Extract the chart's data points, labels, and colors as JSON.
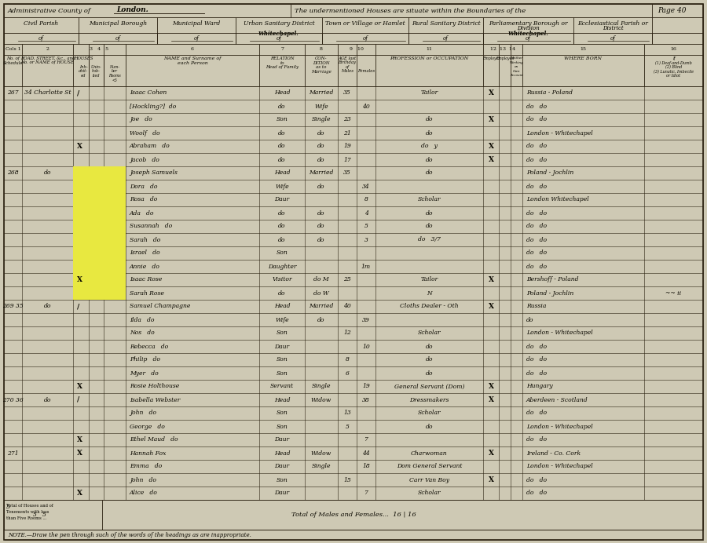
{
  "page_title_left": "Administrative County of ___________ London.",
  "page_title_mid": "The undermentioned Houses are situate within the Boundaries of the",
  "page_num": "Page 40",
  "urban_sanitary_value": "Whitechapel.",
  "parliamentary_value": "Whitechapel.",
  "rows": [
    {
      "sched": "267",
      "address": "34 Charlotte St",
      "mark": "/",
      "name": "Isaac Cohen",
      "relation": "Head",
      "condition": "Married",
      "age_m": "35",
      "age_f": "",
      "occupation": "Tailor",
      "emp": "X",
      "born": "Russia - Poland",
      "infirmity": ""
    },
    {
      "sched": "",
      "address": "",
      "mark": "",
      "name": "[Hockling?]  do",
      "relation": "do",
      "condition": "Wife",
      "age_m": "",
      "age_f": "40",
      "occupation": "",
      "emp": "",
      "born": "do   do",
      "infirmity": ""
    },
    {
      "sched": "",
      "address": "",
      "mark": "",
      "name": "Joe   do",
      "relation": "Son",
      "condition": "Single",
      "age_m": "23",
      "age_f": "",
      "occupation": "do",
      "emp": "X",
      "born": "do   do",
      "infirmity": ""
    },
    {
      "sched": "",
      "address": "",
      "mark": "",
      "name": "Woolf   do",
      "relation": "do",
      "condition": "do",
      "age_m": "21",
      "age_f": "",
      "occupation": "do",
      "emp": "",
      "born": "London - Whitechapel",
      "infirmity": ""
    },
    {
      "sched": "",
      "address": "",
      "mark": "X",
      "name": "Abraham   do",
      "relation": "do",
      "condition": "do",
      "age_m": "19",
      "age_f": "",
      "occupation": "do   y",
      "emp": "X",
      "born": "do   do",
      "infirmity": ""
    },
    {
      "sched": "",
      "address": "",
      "mark": "",
      "name": "Jacob   do",
      "relation": "do",
      "condition": "do",
      "age_m": "17",
      "age_f": "",
      "occupation": "do",
      "emp": "X",
      "born": "do   do",
      "infirmity": ""
    },
    {
      "sched": "268",
      "address": "do",
      "mark": "",
      "name": "Joseph Samuels",
      "relation": "Head",
      "condition": "Married",
      "age_m": "35",
      "age_f": "",
      "occupation": "do",
      "emp": "",
      "born": "Poland - Jochlin",
      "infirmity": "",
      "highlight": true
    },
    {
      "sched": "",
      "address": "",
      "mark": "",
      "name": "Dora   do",
      "relation": "Wife",
      "condition": "do",
      "age_m": "",
      "age_f": "34",
      "occupation": "",
      "emp": "",
      "born": "do   do",
      "infirmity": "",
      "highlight": true
    },
    {
      "sched": "",
      "address": "",
      "mark": "",
      "name": "Rosa   do",
      "relation": "Daur",
      "condition": "",
      "age_m": "",
      "age_f": "8",
      "occupation": "Scholar",
      "emp": "",
      "born": "London Whitechapel",
      "infirmity": "",
      "highlight": true
    },
    {
      "sched": "",
      "address": "",
      "mark": "",
      "name": "Ada   do",
      "relation": "do",
      "condition": "do",
      "age_m": "",
      "age_f": "4",
      "occupation": "do",
      "emp": "",
      "born": "do   do",
      "infirmity": "",
      "highlight": true
    },
    {
      "sched": "",
      "address": "",
      "mark": "",
      "name": "Susannah   do",
      "relation": "do",
      "condition": "do",
      "age_m": "",
      "age_f": "5",
      "occupation": "do",
      "emp": "",
      "born": "do   do",
      "infirmity": "",
      "highlight": true
    },
    {
      "sched": "",
      "address": "",
      "mark": "",
      "name": "Sarah   do",
      "relation": "do",
      "condition": "do",
      "age_m": "",
      "age_f": "3",
      "occupation": "do   3/7",
      "emp": "",
      "born": "do   do",
      "infirmity": "",
      "highlight": true
    },
    {
      "sched": "",
      "address": "",
      "mark": "",
      "name": "Israel   do",
      "relation": "Son",
      "condition": "",
      "age_m": "",
      "age_f": "",
      "occupation": "",
      "emp": "",
      "born": "do   do",
      "infirmity": "",
      "highlight": true
    },
    {
      "sched": "",
      "address": "",
      "mark": "",
      "name": "Annie   do",
      "relation": "Daughter",
      "condition": "",
      "age_m": "",
      "age_f": "1m",
      "occupation": "",
      "emp": "",
      "born": "do   do",
      "infirmity": "",
      "highlight": true
    },
    {
      "sched": "",
      "address": "",
      "mark": "X",
      "name": "Isaac Rose",
      "relation": "Visitor",
      "condition": "do M",
      "age_m": "25",
      "age_f": "",
      "occupation": "Tailor",
      "emp": "X",
      "born": "Bershoff - Poland",
      "infirmity": "",
      "highlight": true
    },
    {
      "sched": "",
      "address": "",
      "mark": "",
      "name": "Sarah Rose",
      "relation": "do",
      "condition": "do W",
      "age_m": "",
      "age_f": "",
      "occupation": "N",
      "emp": "",
      "born": "Poland - Jochlin",
      "infirmity": "~~ ii",
      "highlight": true
    },
    {
      "sched": "269 35",
      "address": "do",
      "mark": "/",
      "name": "Samuel Champagne",
      "relation": "Head",
      "condition": "Married",
      "age_m": "40",
      "age_f": "",
      "occupation": "Cloths Dealer - Oth",
      "emp": "X",
      "born": "Russia",
      "infirmity": ""
    },
    {
      "sched": "",
      "address": "",
      "mark": "",
      "name": "Ilda   do",
      "relation": "Wife",
      "condition": "do",
      "age_m": "",
      "age_f": "39",
      "occupation": "",
      "emp": "",
      "born": "do",
      "infirmity": ""
    },
    {
      "sched": "",
      "address": "",
      "mark": "",
      "name": "Nos   do",
      "relation": "Son",
      "condition": "",
      "age_m": "12",
      "age_f": "",
      "occupation": "Scholar",
      "emp": "",
      "born": "London - Whitechapel",
      "infirmity": ""
    },
    {
      "sched": "",
      "address": "",
      "mark": "",
      "name": "Rebecca   do",
      "relation": "Daur",
      "condition": "",
      "age_m": "",
      "age_f": "10",
      "occupation": "do",
      "emp": "",
      "born": "do   do",
      "infirmity": ""
    },
    {
      "sched": "",
      "address": "",
      "mark": "",
      "name": "Philip   do",
      "relation": "Son",
      "condition": "",
      "age_m": "8",
      "age_f": "",
      "occupation": "do",
      "emp": "",
      "born": "do   do",
      "infirmity": ""
    },
    {
      "sched": "",
      "address": "",
      "mark": "",
      "name": "Myer   do",
      "relation": "Son",
      "condition": "",
      "age_m": "6",
      "age_f": "",
      "occupation": "do",
      "emp": "",
      "born": "do   do",
      "infirmity": ""
    },
    {
      "sched": "",
      "address": "",
      "mark": "X",
      "name": "Rosie Holthouse",
      "relation": "Servant",
      "condition": "Single",
      "age_m": "",
      "age_f": "19",
      "occupation": "General Servant (Dom)",
      "emp": "X",
      "born": "Hungary",
      "infirmity": ""
    },
    {
      "sched": "270 36",
      "address": "do",
      "mark": "/",
      "name": "Isabella Webster",
      "relation": "Head",
      "condition": "Widow",
      "age_m": "",
      "age_f": "38",
      "occupation": "Dressmakers",
      "emp": "X",
      "born": "Aberdeen - Scotland",
      "infirmity": ""
    },
    {
      "sched": "",
      "address": "",
      "mark": "",
      "name": "John   do",
      "relation": "Son",
      "condition": "",
      "age_m": "13",
      "age_f": "",
      "occupation": "Scholar",
      "emp": "",
      "born": "do   do",
      "infirmity": ""
    },
    {
      "sched": "",
      "address": "",
      "mark": "",
      "name": "George   do",
      "relation": "Son",
      "condition": "",
      "age_m": "5",
      "age_f": "",
      "occupation": "do",
      "emp": "",
      "born": "London - Whitechapel",
      "infirmity": ""
    },
    {
      "sched": "",
      "address": "",
      "mark": "X",
      "name": "Ethel Maud   do",
      "relation": "Daur",
      "condition": "",
      "age_m": "",
      "age_f": "7",
      "occupation": "",
      "emp": "",
      "born": "do   do",
      "infirmity": ""
    },
    {
      "sched": "271",
      "address": "",
      "mark": "X",
      "name": "Hannah Fox",
      "relation": "Head",
      "condition": "Widow",
      "age_m": "",
      "age_f": "44",
      "occupation": "Charwoman",
      "emp": "X",
      "born": "Ireland - Co. Cork",
      "infirmity": ""
    },
    {
      "sched": "",
      "address": "",
      "mark": "",
      "name": "Emma   do",
      "relation": "Daur",
      "condition": "Single",
      "age_m": "",
      "age_f": "18",
      "occupation": "Dom General Servant",
      "emp": "",
      "born": "London - Whitechapel",
      "infirmity": ""
    },
    {
      "sched": "",
      "address": "",
      "mark": "",
      "name": "John   do",
      "relation": "Son",
      "condition": "",
      "age_m": "15",
      "age_f": "",
      "occupation": "Carr Van Boy",
      "emp": "X",
      "born": "do   do",
      "infirmity": ""
    },
    {
      "sched": "",
      "address": "",
      "mark": "X",
      "name": "Alice   do",
      "relation": "Daur",
      "condition": "",
      "age_m": "",
      "age_f": "7",
      "occupation": "Scholar",
      "emp": "",
      "born": "do   do",
      "infirmity": ""
    }
  ],
  "footer_note": "NOTE.—Draw the pen through such of the words of the headings as are inappropriate.",
  "bg_color": "#cec9b4",
  "line_color": "#2a2010",
  "text_color": "#0a0800",
  "highlight_color": "#e8e840",
  "paper_color": "#c8c3ad"
}
